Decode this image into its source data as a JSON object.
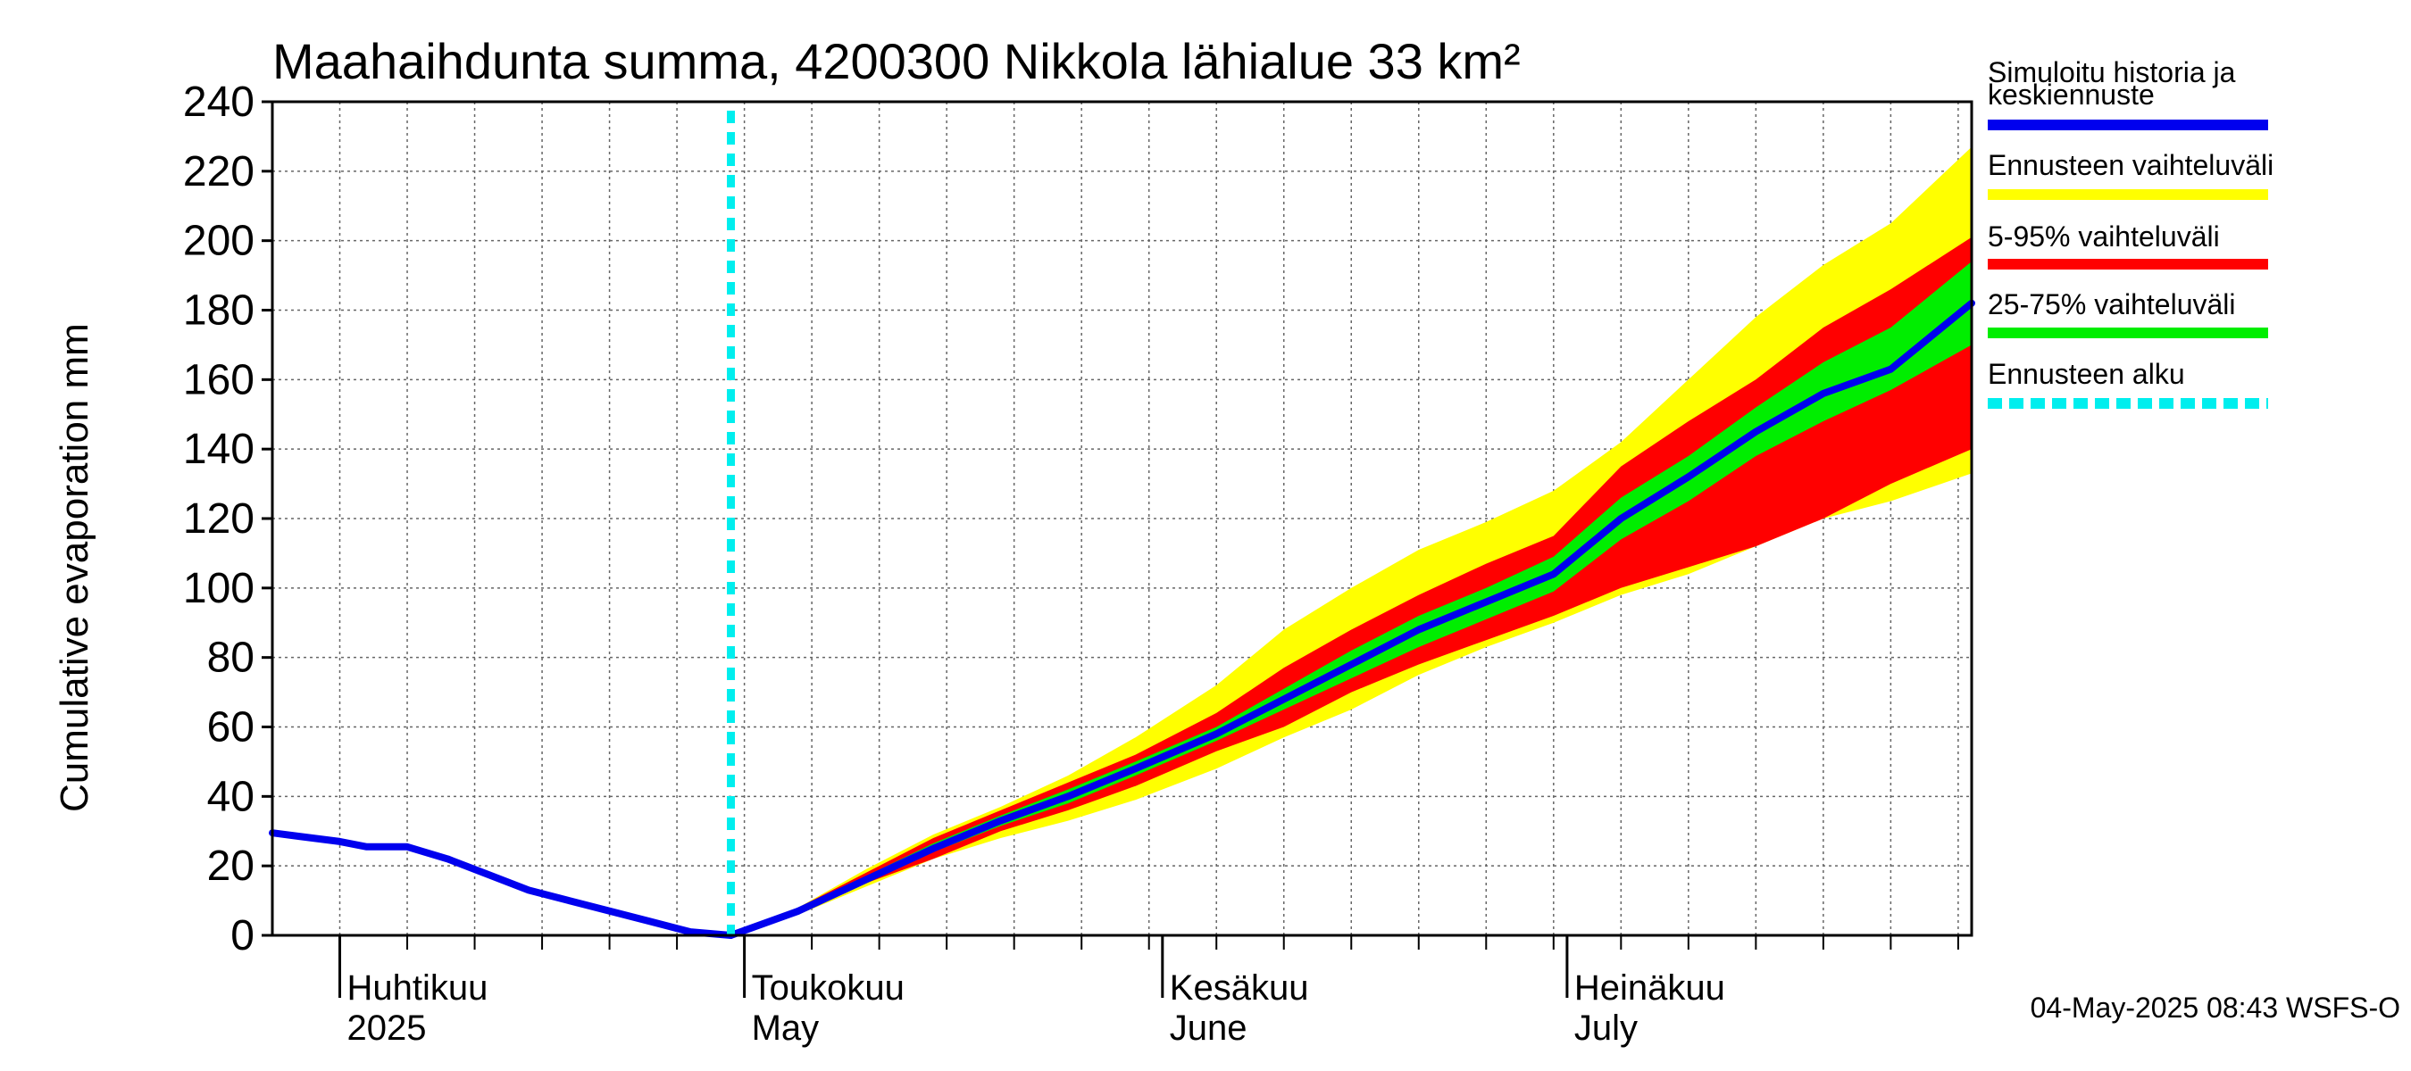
{
  "chart_data": {
    "type": "area",
    "title": "Maahaihdunta summa, 4200300 Nikkola lähialue 33 km²",
    "ylabel": "Cumulative evaporation   mm",
    "xlabel": "",
    "ylim": [
      0,
      240
    ],
    "yticks": [
      0,
      20,
      40,
      60,
      80,
      100,
      120,
      140,
      160,
      180,
      200,
      220,
      240
    ],
    "xlim": [
      "2025-03-27",
      "2025-07-31"
    ],
    "x_month_labels": [
      {
        "date": "2025-04-01",
        "line1": "Huhtikuu",
        "line2": "2025"
      },
      {
        "date": "2025-05-01",
        "line1": "Toukokuu",
        "line2": "May"
      },
      {
        "date": "2025-06-01",
        "line1": "Kesäkuu",
        "line2": "June"
      },
      {
        "date": "2025-07-01",
        "line1": "Heinäkuu",
        "line2": "July"
      }
    ],
    "grid": true,
    "forecast_start": "2025-04-30",
    "legend_position": "right",
    "legend": [
      {
        "label": "Simuloitu historia ja keskiennuste",
        "color": "#0000ee",
        "style": "solid"
      },
      {
        "label": "Ennusteen vaihteluväli",
        "color": "#ffff00",
        "style": "solid"
      },
      {
        "label": "5-95% vaihteluväli",
        "color": "#ff0000",
        "style": "solid"
      },
      {
        "label": "25-75% vaihteluväli",
        "color": "#00ee00",
        "style": "solid"
      },
      {
        "label": "Ennusteen alku",
        "color": "#00eeee",
        "style": "dashed"
      }
    ],
    "series": [
      {
        "role": "history",
        "color": "#0000ee",
        "x": [
          "2025-03-27",
          "2025-03-29",
          "2025-04-01",
          "2025-04-03",
          "2025-04-06",
          "2025-04-09",
          "2025-04-12",
          "2025-04-15",
          "2025-04-18",
          "2025-04-21",
          "2025-04-24",
          "2025-04-27",
          "2025-04-30"
        ],
        "y": [
          29.5,
          28.5,
          27,
          25.5,
          25.5,
          22,
          17.5,
          13,
          10,
          7,
          4,
          1,
          0
        ]
      },
      {
        "role": "median",
        "color": "#0000ee",
        "x": [
          "2025-04-30",
          "2025-05-05",
          "2025-05-10",
          "2025-05-15",
          "2025-05-20",
          "2025-05-25",
          "2025-05-30",
          "2025-06-05",
          "2025-06-10",
          "2025-06-15",
          "2025-06-20",
          "2025-06-25",
          "2025-06-30",
          "2025-07-05",
          "2025-07-10",
          "2025-07-15",
          "2025-07-20",
          "2025-07-25",
          "2025-07-31"
        ],
        "y": [
          0,
          7,
          16,
          25,
          33,
          40,
          48,
          58,
          68,
          78,
          88,
          96,
          104,
          120,
          132,
          145,
          156,
          163,
          182
        ]
      }
    ],
    "bands": [
      {
        "name": "Ennusteen vaihteluväli",
        "color": "#ffff00",
        "x": [
          "2025-04-30",
          "2025-05-05",
          "2025-05-10",
          "2025-05-15",
          "2025-05-20",
          "2025-05-25",
          "2025-05-30",
          "2025-06-05",
          "2025-06-10",
          "2025-06-15",
          "2025-06-20",
          "2025-06-25",
          "2025-06-30",
          "2025-07-05",
          "2025-07-10",
          "2025-07-15",
          "2025-07-20",
          "2025-07-25",
          "2025-07-31"
        ],
        "lower": [
          0,
          6,
          14,
          22,
          28,
          33,
          39,
          48,
          57,
          65,
          75,
          83,
          90,
          98,
          104,
          112,
          120,
          125,
          133
        ],
        "upper": [
          0,
          8,
          19,
          29,
          37,
          46,
          57,
          72,
          88,
          100,
          111,
          119,
          128,
          142,
          160,
          178,
          193,
          205,
          227
        ]
      },
      {
        "name": "5-95% vaihteluväli",
        "color": "#ff0000",
        "x": [
          "2025-04-30",
          "2025-05-05",
          "2025-05-10",
          "2025-05-15",
          "2025-05-20",
          "2025-05-25",
          "2025-05-30",
          "2025-06-05",
          "2025-06-10",
          "2025-06-15",
          "2025-06-20",
          "2025-06-25",
          "2025-06-30",
          "2025-07-05",
          "2025-07-10",
          "2025-07-15",
          "2025-07-20",
          "2025-07-25",
          "2025-07-31"
        ],
        "lower": [
          0,
          6,
          15,
          22,
          30,
          36,
          43,
          53,
          60,
          70,
          78,
          85,
          92,
          100,
          106,
          112,
          120,
          130,
          140
        ],
        "upper": [
          0,
          8,
          18,
          28,
          36,
          44,
          52,
          64,
          77,
          88,
          98,
          107,
          115,
          135,
          148,
          160,
          175,
          186,
          201
        ]
      },
      {
        "name": "25-75% vaihteluväli",
        "color": "#00ee00",
        "x": [
          "2025-04-30",
          "2025-05-05",
          "2025-05-10",
          "2025-05-15",
          "2025-05-20",
          "2025-05-25",
          "2025-05-30",
          "2025-06-05",
          "2025-06-10",
          "2025-06-15",
          "2025-06-20",
          "2025-06-25",
          "2025-06-30",
          "2025-07-05",
          "2025-07-10",
          "2025-07-15",
          "2025-07-20",
          "2025-07-25",
          "2025-07-31"
        ],
        "lower": [
          0,
          6.5,
          15.5,
          24,
          31.5,
          38,
          46,
          56,
          65,
          74,
          83,
          91,
          99,
          114,
          125,
          138,
          148,
          157,
          170
        ],
        "upper": [
          0,
          7.5,
          17,
          26.5,
          34.5,
          42,
          50,
          60,
          71,
          82,
          92,
          100,
          109,
          126,
          138,
          152,
          165,
          175,
          194
        ]
      }
    ]
  },
  "footer": {
    "timestamp": "04-May-2025 08:43 WSFS-O"
  }
}
